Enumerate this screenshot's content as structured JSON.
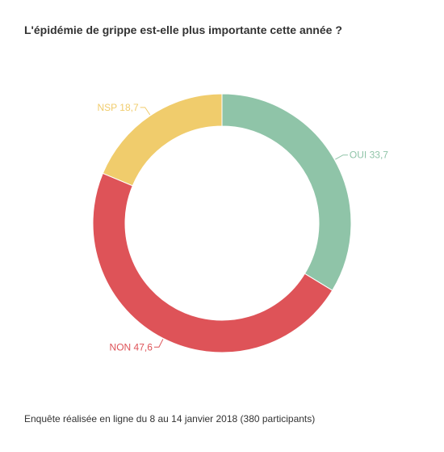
{
  "chart_data": {
    "type": "pie",
    "variant": "donut",
    "title": "L'épidémie de grippe est-elle plus importante cette année ?",
    "footer": "Enquête réalisée en ligne du 8 au 14 janvier 2018  (380 participants)",
    "slices": [
      {
        "label": "OUI",
        "value": 33.7,
        "value_label": "33,7",
        "color": "#8fc4a8"
      },
      {
        "label": "NON",
        "value": 47.6,
        "value_label": "47,6",
        "color": "#de5358"
      },
      {
        "label": "NSP",
        "value": 18.7,
        "value_label": "18,7",
        "color": "#f0cc6c"
      }
    ]
  }
}
